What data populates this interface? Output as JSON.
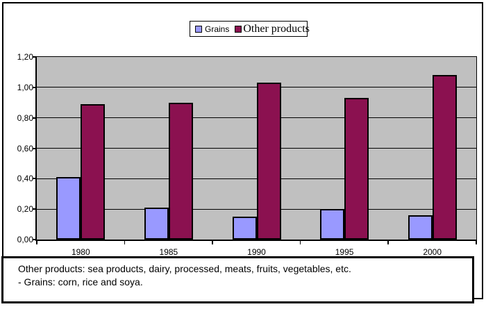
{
  "chart_data": {
    "type": "bar",
    "title": "",
    "categories": [
      "1980",
      "1985",
      "1990",
      "1995",
      "2000"
    ],
    "series": [
      {
        "name": "Grains",
        "color": "#9999FF",
        "values": [
          0.41,
          0.21,
          0.15,
          0.2,
          0.16
        ]
      },
      {
        "name": "Other products",
        "color": "#8B1150",
        "values": [
          0.89,
          0.9,
          1.03,
          0.93,
          1.08
        ]
      }
    ],
    "xlabel": "",
    "ylabel": "",
    "ylim": [
      0,
      1.2
    ],
    "yticks": [
      0,
      0.2,
      0.4,
      0.6,
      0.8,
      1.0,
      1.2
    ],
    "ytick_labels": [
      "0,00",
      "0,20",
      "0,40",
      "0,60",
      "0,80",
      "1,00",
      "1,20"
    ],
    "grid": true,
    "gridline_step": 0.2,
    "legend_position": "top-center",
    "plot_bg": "#C0C0C0",
    "bar_border": "#000000"
  },
  "note": {
    "line1": "Other products: sea products, dairy, processed, meats, fruits, vegetables, etc.",
    "line2": "- Grains: corn, rice and soya."
  }
}
